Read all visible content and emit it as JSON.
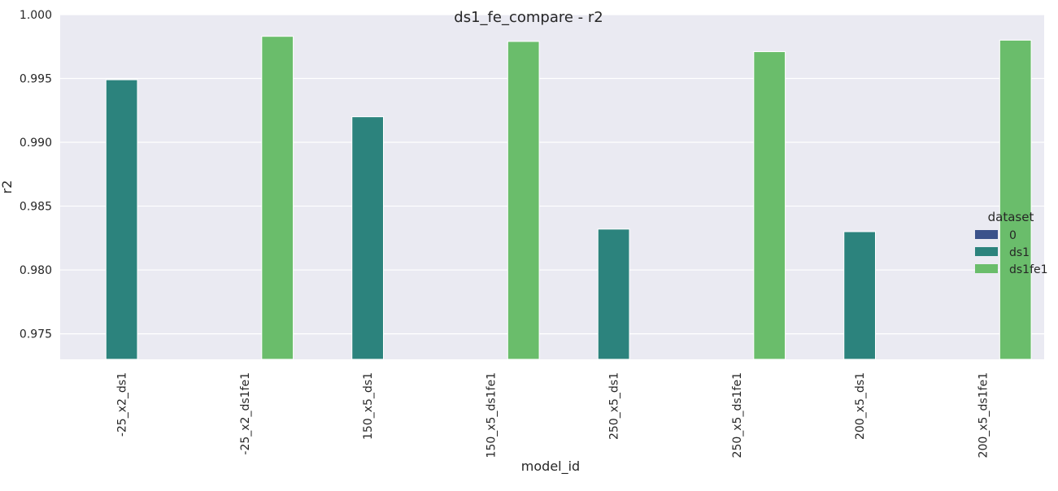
{
  "chart_data": {
    "type": "bar",
    "title": "ds1_fe_compare - r2",
    "xlabel": "model_id",
    "ylabel": "r2",
    "ylim": [
      0.973,
      1.0
    ],
    "yticks": [
      "0.975",
      "0.980",
      "0.985",
      "0.990",
      "0.995",
      "1.000"
    ],
    "grid": true,
    "legend": {
      "title": "dataset",
      "placement": "right",
      "entries": [
        {
          "name": "0",
          "color": "#3b528b"
        },
        {
          "name": "ds1",
          "color": "#2c837d"
        },
        {
          "name": "ds1fe1",
          "color": "#6abd6b"
        }
      ]
    },
    "categories": [
      "-25_x2_ds1",
      "-25_x2_ds1fe1",
      "150_x5_ds1",
      "150_x5_ds1fe1",
      "250_x5_ds1",
      "250_x5_ds1fe1",
      "200_x5_ds1",
      "200_x5_ds1fe1"
    ],
    "series": [
      {
        "name": "ds1",
        "color": "#2c837d",
        "values": [
          0.9949,
          null,
          0.992,
          null,
          0.9832,
          null,
          0.983,
          null
        ]
      },
      {
        "name": "ds1fe1",
        "color": "#6abd6b",
        "values": [
          null,
          0.9983,
          null,
          0.9979,
          null,
          0.9971,
          null,
          0.998
        ]
      }
    ]
  }
}
